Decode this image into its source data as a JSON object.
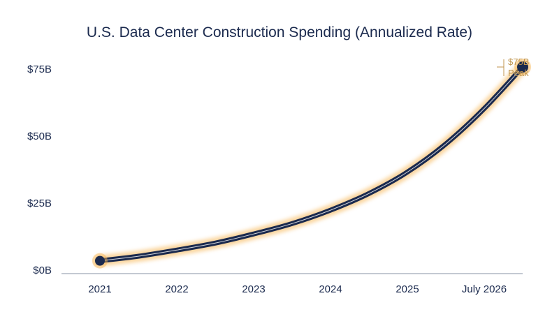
{
  "chart_data": {
    "type": "line",
    "title": "U.S. Data Center Construction Spending (Annualized Rate)",
    "xlabel": "",
    "ylabel": "",
    "x_ticks": [
      "2021",
      "2022",
      "2023",
      "2024",
      "2025",
      "July 2026"
    ],
    "y_ticks": [
      "$0B",
      "$25B",
      "$50B",
      "$75B"
    ],
    "ylim": [
      0,
      75
    ],
    "grid": false,
    "series": [
      {
        "x": [
          2021,
          2021.5,
          2022,
          2022.5,
          2023,
          2023.5,
          2024,
          2024.5,
          2025,
          2025.5,
          2026,
          2026.5
        ],
        "values": [
          2.7,
          4.4,
          6.7,
          9.3,
          12.7,
          16.6,
          21.6,
          27.8,
          35.8,
          46.3,
          59.5,
          75
        ]
      }
    ],
    "annotation": {
      "value_label": "$75B",
      "note_label": "Peak"
    },
    "colors": {
      "line": "#1b2a4e",
      "glow": "#f6b24e",
      "text": "#1b2a4e",
      "annotation": "#c0964f",
      "axis": "#8a93a6"
    }
  }
}
